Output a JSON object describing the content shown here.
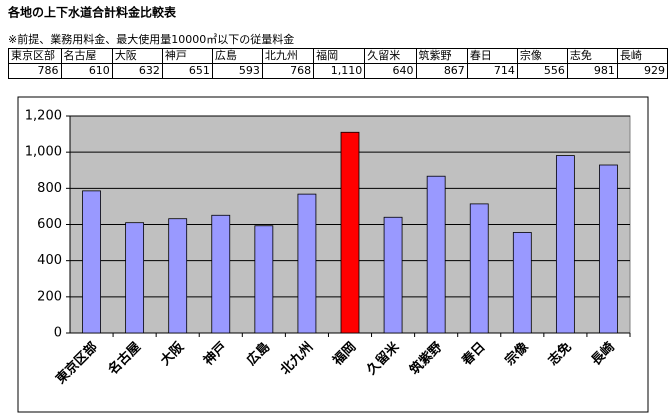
{
  "chart_data": {
    "type": "bar",
    "title": "各地の上下水道合計料金比較表",
    "note": "※前提、業務用料金、最大使用量10000㎥以下の従量料金",
    "categories": [
      "東京区部",
      "名古屋",
      "大阪",
      "神戸",
      "広島",
      "北九州",
      "福岡",
      "久留米",
      "筑紫野",
      "春日",
      "宗像",
      "志免",
      "長崎"
    ],
    "values": [
      786,
      610,
      632,
      651,
      593,
      768,
      1110,
      640,
      867,
      714,
      556,
      981,
      929
    ],
    "value_labels": [
      "786",
      "610",
      "632",
      "651",
      "593",
      "768",
      "1,110",
      "640",
      "867",
      "714",
      "556",
      "981",
      "929"
    ],
    "colors": [
      "#9999ff",
      "#9999ff",
      "#9999ff",
      "#9999ff",
      "#9999ff",
      "#9999ff",
      "#ff0000",
      "#9999ff",
      "#9999ff",
      "#9999ff",
      "#9999ff",
      "#9999ff",
      "#9999ff"
    ],
    "ylim": [
      0,
      1200
    ],
    "yticks": [
      0,
      200,
      400,
      600,
      800,
      {
        "value": 1000,
        "label": "1,000"
      },
      {
        "value": 1200,
        "label": "1,200"
      }
    ],
    "grid": true
  }
}
